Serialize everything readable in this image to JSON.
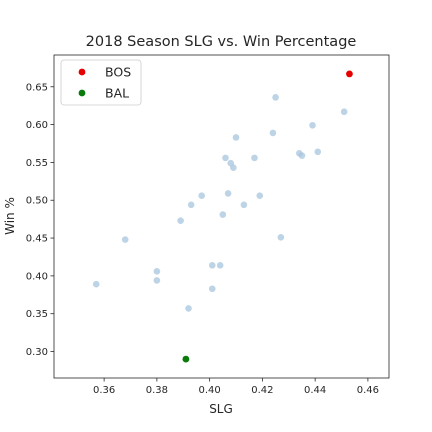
{
  "chart_data": {
    "type": "scatter",
    "title": "2018 Season SLG vs. Win Percentage",
    "xlabel": "SLG",
    "ylabel": "Win %",
    "xlim": [
      0.341,
      0.468
    ],
    "ylim": [
      0.265,
      0.692
    ],
    "xticks": [
      0.36,
      0.38,
      0.4,
      0.42,
      0.44,
      0.46
    ],
    "yticks": [
      0.3,
      0.35,
      0.4,
      0.45,
      0.5,
      0.55,
      0.6,
      0.65
    ],
    "grid": false,
    "legend_position": "top-left",
    "background_series": {
      "color": "#a7c4de",
      "points": [
        {
          "x": 0.357,
          "y": 0.389
        },
        {
          "x": 0.368,
          "y": 0.448
        },
        {
          "x": 0.38,
          "y": 0.406
        },
        {
          "x": 0.38,
          "y": 0.394
        },
        {
          "x": 0.389,
          "y": 0.473
        },
        {
          "x": 0.392,
          "y": 0.357
        },
        {
          "x": 0.393,
          "y": 0.494
        },
        {
          "x": 0.397,
          "y": 0.506
        },
        {
          "x": 0.401,
          "y": 0.414
        },
        {
          "x": 0.401,
          "y": 0.383
        },
        {
          "x": 0.404,
          "y": 0.414
        },
        {
          "x": 0.405,
          "y": 0.481
        },
        {
          "x": 0.406,
          "y": 0.556
        },
        {
          "x": 0.407,
          "y": 0.509
        },
        {
          "x": 0.408,
          "y": 0.549
        },
        {
          "x": 0.409,
          "y": 0.543
        },
        {
          "x": 0.41,
          "y": 0.583
        },
        {
          "x": 0.413,
          "y": 0.494
        },
        {
          "x": 0.417,
          "y": 0.556
        },
        {
          "x": 0.419,
          "y": 0.506
        },
        {
          "x": 0.424,
          "y": 0.589
        },
        {
          "x": 0.425,
          "y": 0.636
        },
        {
          "x": 0.427,
          "y": 0.451
        },
        {
          "x": 0.434,
          "y": 0.562
        },
        {
          "x": 0.435,
          "y": 0.559
        },
        {
          "x": 0.439,
          "y": 0.599
        },
        {
          "x": 0.441,
          "y": 0.564
        },
        {
          "x": 0.451,
          "y": 0.617
        }
      ]
    },
    "series": [
      {
        "name": "BOS",
        "color": "#e50000",
        "points": [
          {
            "x": 0.453,
            "y": 0.667
          }
        ]
      },
      {
        "name": "BAL",
        "color": "#0a7a0a",
        "points": [
          {
            "x": 0.391,
            "y": 0.29
          }
        ]
      }
    ]
  }
}
